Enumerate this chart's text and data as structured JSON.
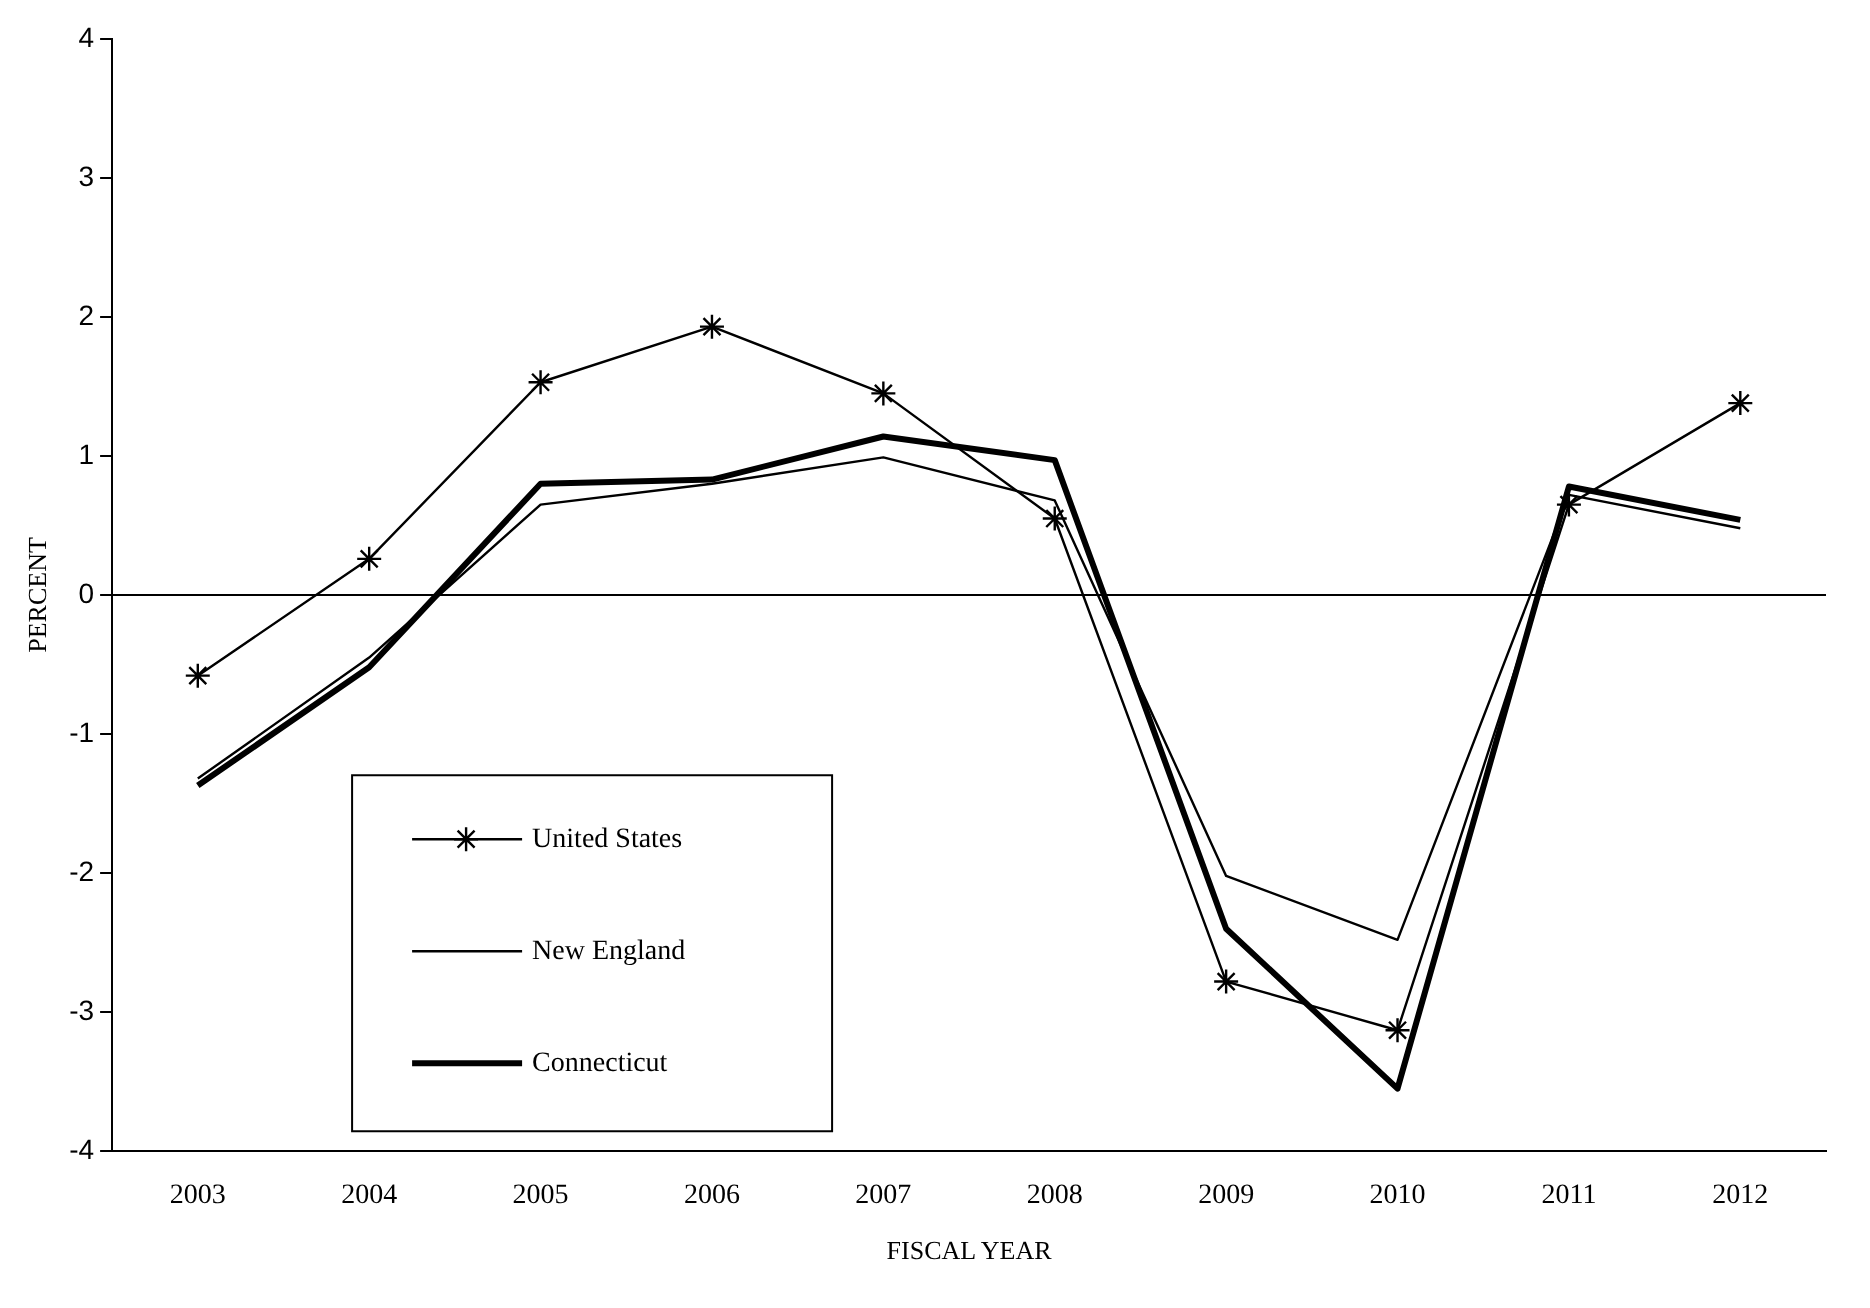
{
  "chart_data": {
    "type": "line",
    "xlabel": "FISCAL YEAR",
    "ylabel": "PERCENT",
    "categories": [
      "2003",
      "2004",
      "2005",
      "2006",
      "2007",
      "2008",
      "2009",
      "2010",
      "2011",
      "2012"
    ],
    "series": [
      {
        "name": "United States",
        "color": "#000000",
        "marker": "cross",
        "values": [
          -0.58,
          0.26,
          1.53,
          1.93,
          1.45,
          0.55,
          -2.78,
          -3.13,
          0.65,
          1.38
        ]
      },
      {
        "name": "New England",
        "color": "#000000",
        "marker": "none",
        "values": [
          -1.32,
          -0.45,
          0.65,
          0.8,
          0.99,
          0.68,
          -2.02,
          -2.48,
          0.72,
          0.48
        ]
      },
      {
        "name": "Connecticut",
        "color": "#000000",
        "marker": "none",
        "values": [
          -1.37,
          -0.52,
          0.8,
          0.83,
          1.14,
          0.97,
          -2.4,
          -3.55,
          0.78,
          0.54
        ]
      }
    ],
    "ylim": [
      -4,
      4
    ],
    "yticks": [
      -4,
      -3,
      -2,
      -1,
      0,
      1,
      2,
      3,
      4
    ],
    "ref_lines": [
      {
        "axis": "y",
        "value": 0,
        "color": "#000000"
      }
    ],
    "legend": "bottom left",
    "grid": false
  }
}
